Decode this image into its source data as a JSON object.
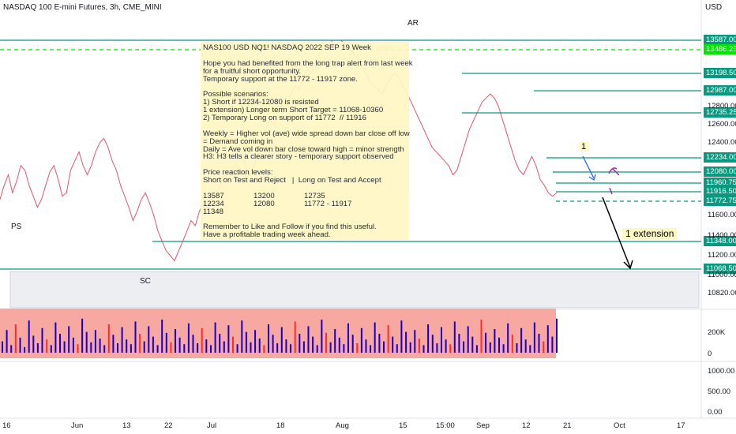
{
  "header": {
    "title": "NASDAQ 100 E-mini Futures, 3h, CME_MINI",
    "currency": "USD"
  },
  "note": {
    "lines": [
      "NAS100 USD NQ1! NASDAQ 2022 SEP 19 Week",
      "",
      "Hope you had benefited from the long trap alert from last week",
      "for a fruitful short opportunity.",
      "Temporary support at the 11772 - 11917 zone.",
      "",
      "Possible scenarios:",
      "1) Short if 12234-12080 is resisted",
      "1 extension) Longer term Short Target = 11068-10360",
      "2) Temporary Long on support of 11772  // 11916",
      "",
      "Weekly = Higher vol (ave) wide spread down bar close off low",
      "= Demand coming in",
      "Daily = Ave vol down bar close toward high = minor strength",
      "H3: H3 tells a clearer story - temporary support observed",
      "",
      "Price reaction levels:",
      "Short on Test and Reject   |  Long on Test and Accept",
      "",
      "13587              13200              12735",
      "12234              12080              11772 - 11917",
      "11348",
      "",
      "Remember to Like and Follow if you find this useful.",
      "Have a profitable trading week ahead."
    ]
  },
  "annotations": {
    "ps": "PS",
    "sc": "SC",
    "ar": "AR",
    "callout_1": "1",
    "callout_ext": "1 extension"
  },
  "chart_data": {
    "type": "line",
    "price_scale": {
      "ticks": [
        12800,
        12600,
        12400,
        11600,
        11400,
        11200,
        11000,
        10820
      ],
      "levels": [
        {
          "label": "13587.00",
          "value": 13587,
          "color": "#089981",
          "style": "solid"
        },
        {
          "label": "13486.25",
          "value": 13486.25,
          "color": "#00e600",
          "style": "dashed"
        },
        {
          "label": "13198.50",
          "value": 13198.5,
          "color": "#089981",
          "style": "solid"
        },
        {
          "label": "12987.00",
          "value": 12987,
          "color": "#089981",
          "style": "solid"
        },
        {
          "label": "12735.25",
          "value": 12735.25,
          "color": "#089981",
          "style": "solid"
        },
        {
          "label": "12234.00",
          "value": 12234,
          "color": "#089981",
          "style": "solid"
        },
        {
          "label": "12080.00",
          "value": 12080,
          "color": "#089981",
          "style": "solid"
        },
        {
          "label": "11960.75",
          "value": 11960.75,
          "color": "#089981",
          "style": "solid"
        },
        {
          "label": "11916.50",
          "value": 11916.5,
          "color": "#089981",
          "style": "solid"
        },
        {
          "label": "11772.75",
          "value": 11772.75,
          "color": "#089981",
          "style": "dashed"
        },
        {
          "label": "11348.00",
          "value": 11348,
          "color": "#089981",
          "style": "solid"
        },
        {
          "label": "11068.50",
          "value": 11068.5,
          "color": "#089981",
          "style": "solid"
        }
      ]
    },
    "volume_scale": {
      "ticks": [
        "200K",
        "0"
      ]
    },
    "indicator_scale": {
      "ticks": [
        "1000.00",
        "500.00",
        "0.00"
      ]
    },
    "time_axis": {
      "ticks": [
        "16",
        "Jun",
        "13",
        "22",
        "Jul",
        "18",
        "Aug",
        "15",
        "15:00",
        "Sep",
        "12",
        "21",
        "Oct",
        "17"
      ]
    },
    "series": [
      {
        "type": "price",
        "values": [
          11800,
          11950,
          12050,
          11900,
          11980,
          12150,
          12100,
          11950,
          11850,
          11700,
          11800,
          11950,
          12080,
          12150,
          12000,
          11850,
          11900,
          12100,
          12200,
          12300,
          12150,
          12050,
          12150,
          12300,
          12400,
          12450,
          12350,
          12200,
          12100,
          11950,
          11850,
          11700,
          11550,
          11650,
          11800,
          11900,
          11750,
          11600,
          11450,
          11350,
          11250,
          11200,
          11150,
          11250,
          11350,
          11450,
          11550,
          11500,
          11650,
          11750,
          11700,
          11800,
          11850,
          11950,
          12050,
          12000,
          12100,
          12200,
          12250,
          12150,
          12050,
          12150,
          12300,
          12450,
          12550,
          12650,
          12600,
          12750,
          12850,
          12800,
          12950,
          13050,
          13000,
          13150,
          13250,
          13200,
          13350,
          13450,
          13550,
          13500,
          13600,
          13650,
          13600,
          13550,
          13500,
          13450,
          13400,
          13300,
          13200,
          13100,
          13050,
          13000,
          12950,
          13050,
          13150,
          13200,
          13150,
          13050,
          12950,
          12850,
          12750,
          12650,
          12550,
          12450,
          12350,
          12300,
          12250,
          12200,
          12150,
          12050,
          12100,
          12250,
          12400,
          12550,
          12650,
          12750,
          12850,
          12900,
          12950,
          12900,
          12800,
          12650,
          12500,
          12350,
          12200,
          12100,
          12050,
          12150,
          12250,
          12150,
          12000,
          11950,
          11900,
          11850,
          11900
        ]
      },
      {
        "type": "volume",
        "values": [
          60,
          120,
          40,
          150,
          80,
          30,
          170,
          90,
          50,
          130,
          70,
          40,
          160,
          100,
          60,
          140,
          80,
          45,
          180,
          110,
          55,
          120,
          75,
          40,
          150,
          95,
          50,
          135,
          70,
          45,
          165,
          100,
          60,
          140,
          85,
          40,
          175,
          105,
          55,
          125,
          80,
          45,
          155,
          95,
          50,
          130,
          70,
          40,
          160,
          100,
          60,
          145,
          85,
          45,
          170,
          110,
          55,
          120,
          75,
          40,
          150,
          95,
          50,
          135,
          70,
          45,
          165,
          100,
          60,
          140,
          85,
          40,
          175,
          105,
          55,
          125,
          80,
          45,
          155,
          95,
          50,
          130,
          70,
          40,
          160,
          100,
          60,
          145,
          85,
          45,
          170,
          110,
          55,
          120,
          75,
          40,
          150,
          95,
          50,
          135,
          70,
          45,
          165,
          100,
          60,
          140,
          85,
          40,
          175,
          105,
          55,
          125,
          80,
          45,
          155,
          95,
          50,
          130,
          70,
          40,
          160,
          100,
          60,
          145,
          85,
          180
        ]
      }
    ]
  }
}
